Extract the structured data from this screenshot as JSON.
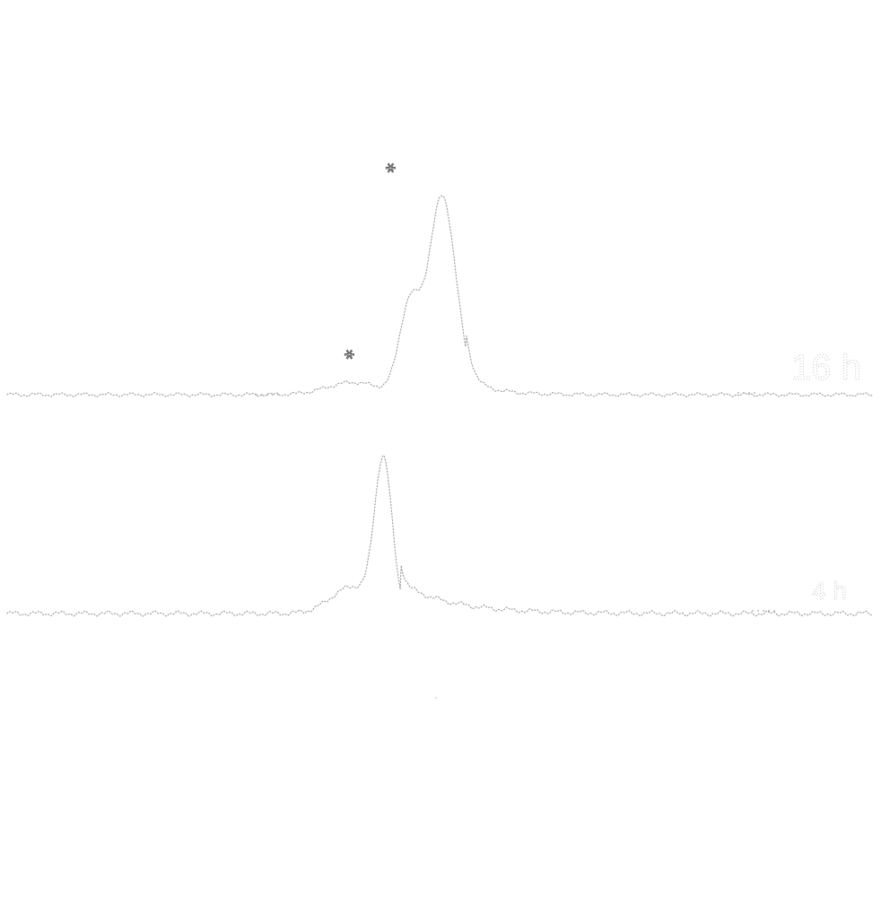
{
  "chart_data": {
    "type": "line",
    "title": "",
    "xlabel": "",
    "ylabel": "",
    "grid": false,
    "legend": "none",
    "style": {
      "line_color": "#9a9a9a",
      "label_color": "#b8b8b8",
      "marker_color": "#555555",
      "line_style": "dotted"
    },
    "xlim": [
      0,
      100
    ],
    "ylim": [
      0,
      1
    ],
    "series": [
      {
        "name": "16 h",
        "marker_symbol": "⚹",
        "peaks": [
          {
            "x": 46.5,
            "height": 0.42,
            "width": 1.2,
            "marker": true
          },
          {
            "x": 50.3,
            "height": 0.97,
            "width": 1.6,
            "marker": true
          }
        ],
        "shoulder": {
          "x": 40,
          "height": 0.06,
          "width": 3
        },
        "tail": {
          "start": 53,
          "decay": 3,
          "amplitude": 0.08
        }
      },
      {
        "name": "4 h",
        "marker_symbol": "",
        "peaks": [
          {
            "x": 43.5,
            "height": 0.55,
            "width": 1.0,
            "marker": false
          }
        ],
        "shoulder": {
          "x": 40,
          "height": 0.1,
          "width": 2.5
        },
        "tail": {
          "start": 45.5,
          "decay": 6,
          "amplitude": 0.11
        }
      }
    ]
  }
}
